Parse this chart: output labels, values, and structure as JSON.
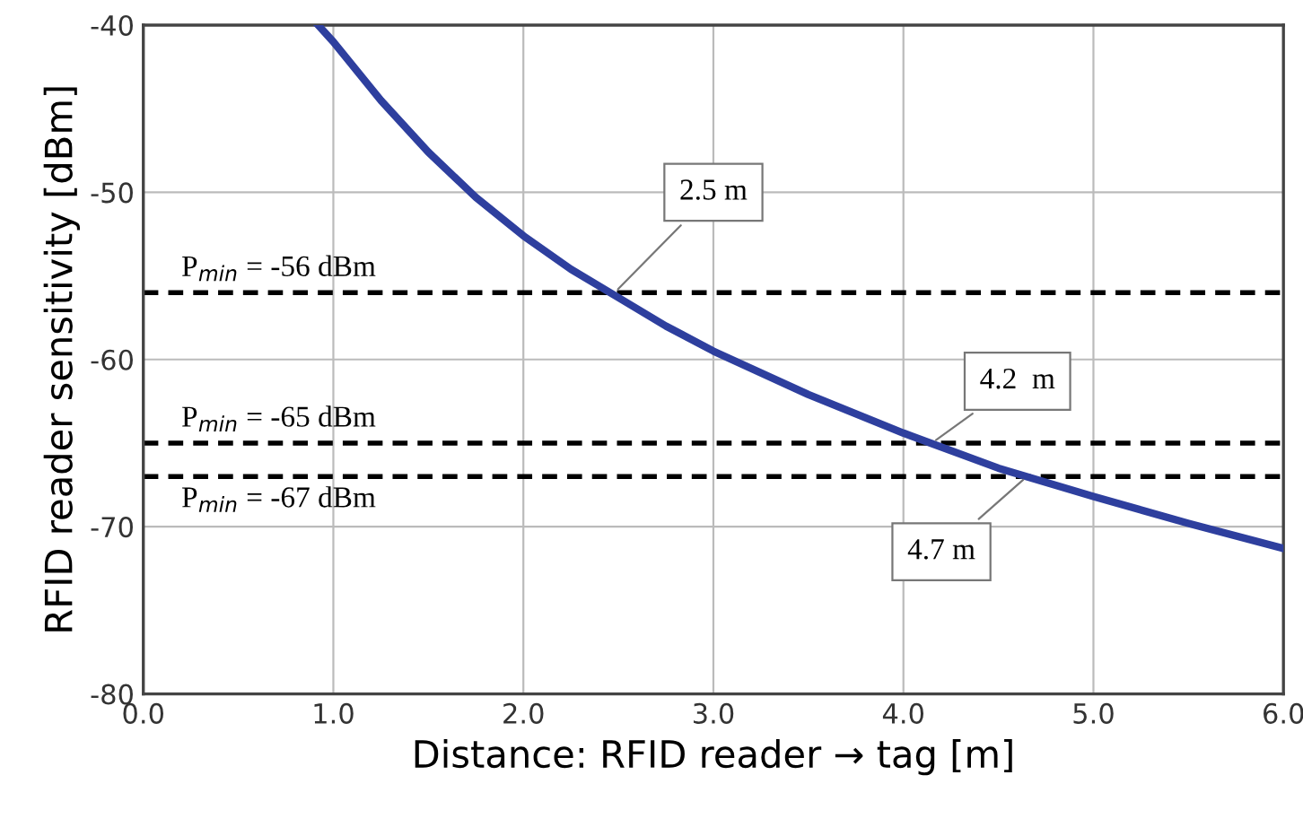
{
  "chart_data": {
    "type": "line",
    "xlabel": "Distance: RFID reader → tag [m]",
    "ylabel": "RFID reader sensitivity [dBm]",
    "x": [
      0.92,
      1.0,
      1.25,
      1.5,
      1.75,
      2.0,
      2.25,
      2.5,
      2.75,
      3.0,
      3.5,
      4.0,
      4.5,
      5.0,
      5.5,
      6.0
    ],
    "series": [
      {
        "color": "#2e3f9e",
        "values": [
          -40,
          -41.0,
          -44.5,
          -47.6,
          -50.3,
          -52.6,
          -54.6,
          -56.3,
          -58.0,
          -59.5,
          -62.1,
          -64.4,
          -66.5,
          -68.2,
          -69.8,
          -71.3
        ]
      }
    ],
    "xlim": [
      0,
      6
    ],
    "ylim": [
      -80,
      -40
    ],
    "xticks": [
      {
        "value": 0,
        "label": "0.0"
      },
      {
        "value": 1,
        "label": "1.0"
      },
      {
        "value": 2,
        "label": "2.0"
      },
      {
        "value": 3,
        "label": "3.0"
      },
      {
        "value": 4,
        "label": "4.0"
      },
      {
        "value": 5,
        "label": "5.0"
      },
      {
        "value": 6,
        "label": "6.0"
      }
    ],
    "yticks": [
      -80,
      -70,
      -60,
      -50,
      -40
    ],
    "ref_lines": [
      {
        "axis": "y",
        "value": -56,
        "label": "P$_{min}$ = -56 dBm",
        "color": "#000000",
        "line_style": "dashed"
      },
      {
        "axis": "y",
        "value": -65,
        "label": "P$_{min}$ = -65 dBm",
        "color": "#000000",
        "line_style": "dashed"
      },
      {
        "axis": "y",
        "value": -67,
        "label": "P$_{min}$ = -67 dBm",
        "color": "#000000",
        "line_style": "dashed"
      }
    ],
    "annotations": [
      {
        "text": "2.5 m",
        "x": 2.48,
        "y": -56
      },
      {
        "text": "4.2  m",
        "x": 4.15,
        "y": -65
      },
      {
        "text": "4.7 m",
        "x": 4.65,
        "y": -67
      }
    ],
    "grid": true,
    "marker": "none",
    "line_style": "solid"
  }
}
